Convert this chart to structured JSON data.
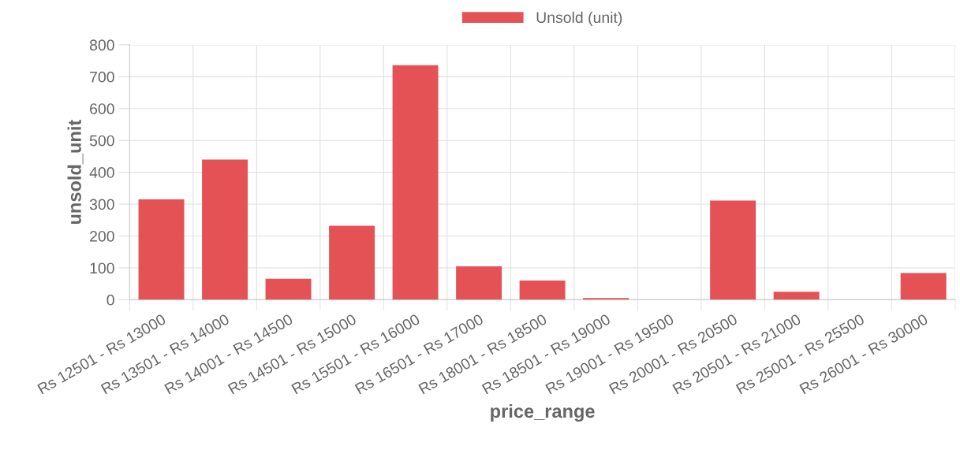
{
  "chart_data": {
    "type": "bar",
    "xlabel": "price_range",
    "ylabel": "unsold_unit",
    "categories": [
      "Rs 12501 - Rs 13000",
      "Rs 13501 - Rs 14000",
      "Rs 14001 - Rs 14500",
      "Rs 14501 - Rs 15000",
      "Rs 15501 - Rs 16000",
      "Rs 16501 - Rs 17000",
      "Rs 18001 - Rs 18500",
      "Rs 18501 - Rs 19000",
      "Rs 19001 - Rs 19500",
      "Rs 20001 - Rs 20500",
      "Rs 20501 - Rs 21000",
      "Rs 25001 - Rs 25500",
      "Rs 26001 - Rs 30000"
    ],
    "series": [
      {
        "name": "Unsold (unit)",
        "color": "#e45256",
        "values": [
          315,
          440,
          66,
          232,
          736,
          105,
          60,
          5,
          0,
          311,
          25,
          0,
          84
        ]
      }
    ],
    "ylim": [
      0,
      800
    ],
    "yticks": [
      0,
      100,
      200,
      300,
      400,
      500,
      600,
      700,
      800
    ],
    "grid": true,
    "legend": "top"
  }
}
